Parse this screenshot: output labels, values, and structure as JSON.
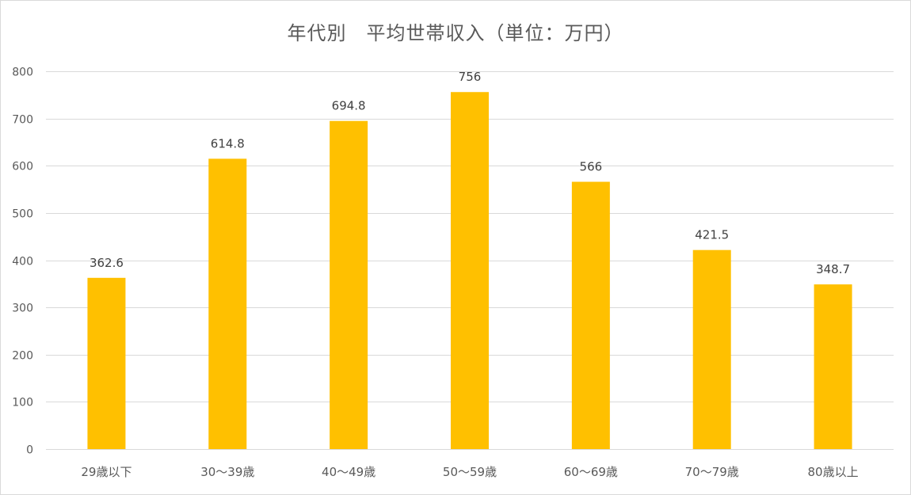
{
  "chart_data": {
    "type": "bar",
    "title": "年代別　平均世帯収入（単位：万円）",
    "categories": [
      "29歳以下",
      "30～39歳",
      "40～49歳",
      "50～59歳",
      "60～69歳",
      "70～79歳",
      "80歳以上"
    ],
    "values": [
      362.6,
      614.8,
      694.8,
      756,
      566,
      421.5,
      348.7
    ],
    "value_labels": [
      "362.6",
      "614.8",
      "694.8",
      "756",
      "566",
      "421.5",
      "348.7"
    ],
    "xlabel": "",
    "ylabel": "",
    "ylim": [
      0,
      800
    ],
    "yticks": [
      0,
      100,
      200,
      300,
      400,
      500,
      600,
      700,
      800
    ],
    "ytick_labels": [
      "0",
      "100",
      "200",
      "300",
      "400",
      "500",
      "600",
      "700",
      "800"
    ],
    "grid": true,
    "legend": "none",
    "bar_color": "#FFC000",
    "grid_color": "#d9d9d9",
    "text_color": "#595959"
  }
}
